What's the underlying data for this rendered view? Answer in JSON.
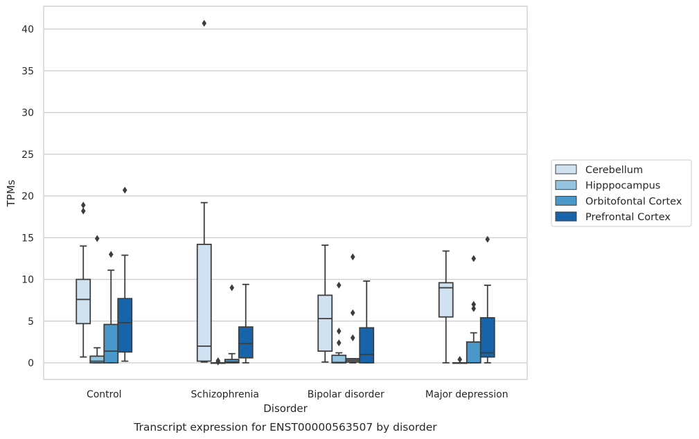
{
  "chart_data": {
    "type": "boxplot",
    "xlabel": "Disorder",
    "ylabel": "TPMs",
    "caption": "Transcript expression for ENST00000563507 by disorder",
    "ylim": [
      -2,
      42.6
    ],
    "yticks": [
      "0",
      "5",
      "10",
      "15",
      "20",
      "25",
      "30",
      "35",
      "40"
    ],
    "grid": "horizontal",
    "legend_placement": "right",
    "categories": [
      "Control",
      "Schizophrenia",
      "Bipolar disorder",
      "Major depression"
    ],
    "series": [
      {
        "name": "Cerebellum",
        "color": "#d0e1f2",
        "boxes": [
          {
            "whislo": 0.7,
            "q1": 4.7,
            "med": 7.6,
            "q3": 10.0,
            "whishi": 14.0,
            "fliers": [
              18.2,
              18.9
            ]
          },
          {
            "whislo": 0.1,
            "q1": 0.2,
            "med": 2.0,
            "q3": 14.2,
            "whishi": 19.2,
            "fliers": [
              40.7
            ]
          },
          {
            "whislo": 0.1,
            "q1": 1.4,
            "med": 5.3,
            "q3": 8.1,
            "whishi": 14.1,
            "fliers": []
          },
          {
            "whislo": 0.0,
            "q1": 5.5,
            "med": 9.0,
            "q3": 9.6,
            "whishi": 13.4,
            "fliers": []
          }
        ]
      },
      {
        "name": "Hipppocampus",
        "color": "#94c4df",
        "boxes": [
          {
            "whislo": 0.0,
            "q1": 0.0,
            "med": 0.2,
            "q3": 0.8,
            "whishi": 1.8,
            "fliers": [
              14.9
            ]
          },
          {
            "whislo": 0.0,
            "q1": 0.0,
            "med": 0.0,
            "q3": 0.0,
            "whishi": 0.0,
            "fliers": [
              0.1,
              0.25
            ]
          },
          {
            "whislo": 0.0,
            "q1": 0.0,
            "med": 0.05,
            "q3": 0.9,
            "whishi": 1.2,
            "fliers": [
              2.4,
              3.8,
              9.3
            ]
          },
          {
            "whislo": 0.0,
            "q1": 0.0,
            "med": 0.0,
            "q3": 0.0,
            "whishi": 0.0,
            "fliers": [
              0.4
            ]
          }
        ]
      },
      {
        "name": "Orbitofontal Cortex",
        "color": "#4a98c9",
        "boxes": [
          {
            "whislo": 0.0,
            "q1": 0.0,
            "med": 1.4,
            "q3": 4.6,
            "whishi": 11.1,
            "fliers": [
              13.0
            ]
          },
          {
            "whislo": 0.0,
            "q1": 0.0,
            "med": 0.1,
            "q3": 0.4,
            "whishi": 1.1,
            "fliers": [
              9.0
            ]
          },
          {
            "whislo": 0.0,
            "q1": 0.1,
            "med": 0.3,
            "q3": 0.5,
            "whishi": 0.5,
            "fliers": [
              3.0,
              6.0,
              12.7
            ]
          },
          {
            "whislo": 0.0,
            "q1": 0.0,
            "med": 0.0,
            "q3": 2.5,
            "whishi": 3.6,
            "fliers": [
              6.5,
              7.0,
              12.5
            ]
          }
        ]
      },
      {
        "name": "Prefrontal Cortex",
        "color": "#1764ab",
        "boxes": [
          {
            "whislo": 0.2,
            "q1": 1.3,
            "med": 4.8,
            "q3": 7.7,
            "whishi": 12.9,
            "fliers": [
              20.7
            ]
          },
          {
            "whislo": 0.0,
            "q1": 0.6,
            "med": 2.3,
            "q3": 4.3,
            "whishi": 9.4,
            "fliers": []
          },
          {
            "whislo": 0.0,
            "q1": 0.0,
            "med": 1.0,
            "q3": 4.2,
            "whishi": 9.8,
            "fliers": []
          },
          {
            "whislo": 0.0,
            "q1": 0.7,
            "med": 1.2,
            "q3": 5.4,
            "whishi": 9.3,
            "fliers": [
              14.8
            ]
          }
        ]
      }
    ]
  }
}
